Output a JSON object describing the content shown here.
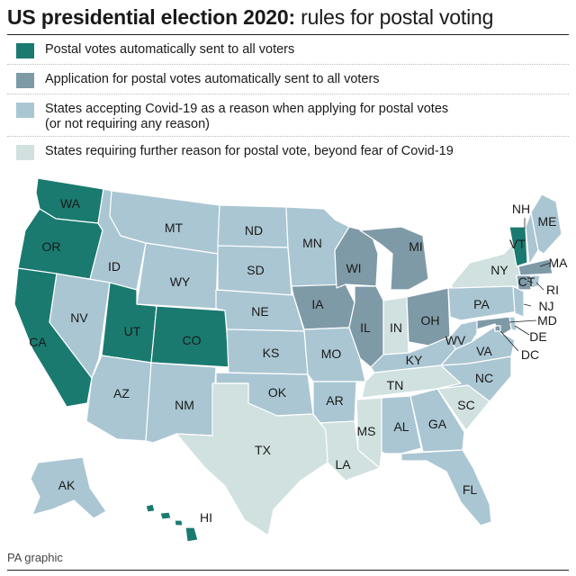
{
  "title": {
    "bold": "US presidential election 2020:",
    "rest": " rules for postal voting"
  },
  "colors": {
    "cat1": "#1a7a70",
    "cat2": "#7f9aa7",
    "cat3": "#aac6d3",
    "cat4": "#d0e1df",
    "border": "#ffffff"
  },
  "legend": [
    {
      "cat": "cat1",
      "lines": [
        "Postal votes automatically sent to all voters"
      ]
    },
    {
      "cat": "cat2",
      "lines": [
        "Application for postal votes automatically sent to all voters"
      ]
    },
    {
      "cat": "cat3",
      "lines": [
        "States accepting Covid-19 as a reason when applying for postal votes",
        "(or not requiring any reason)"
      ]
    },
    {
      "cat": "cat4",
      "lines": [
        "States requiring further reason for postal vote, beyond fear of Covid-19"
      ]
    }
  ],
  "states": [
    {
      "abbr": "WA",
      "cat": "cat1"
    },
    {
      "abbr": "OR",
      "cat": "cat1"
    },
    {
      "abbr": "CA",
      "cat": "cat1"
    },
    {
      "abbr": "ID",
      "cat": "cat3"
    },
    {
      "abbr": "NV",
      "cat": "cat3"
    },
    {
      "abbr": "UT",
      "cat": "cat1"
    },
    {
      "abbr": "AZ",
      "cat": "cat3"
    },
    {
      "abbr": "MT",
      "cat": "cat3"
    },
    {
      "abbr": "WY",
      "cat": "cat3"
    },
    {
      "abbr": "CO",
      "cat": "cat1"
    },
    {
      "abbr": "NM",
      "cat": "cat3"
    },
    {
      "abbr": "ND",
      "cat": "cat3"
    },
    {
      "abbr": "SD",
      "cat": "cat3"
    },
    {
      "abbr": "NE",
      "cat": "cat3"
    },
    {
      "abbr": "KS",
      "cat": "cat3"
    },
    {
      "abbr": "OK",
      "cat": "cat3"
    },
    {
      "abbr": "TX",
      "cat": "cat4"
    },
    {
      "abbr": "MN",
      "cat": "cat3"
    },
    {
      "abbr": "IA",
      "cat": "cat2"
    },
    {
      "abbr": "MO",
      "cat": "cat3"
    },
    {
      "abbr": "AR",
      "cat": "cat3"
    },
    {
      "abbr": "LA",
      "cat": "cat4"
    },
    {
      "abbr": "WI",
      "cat": "cat2"
    },
    {
      "abbr": "IL",
      "cat": "cat2"
    },
    {
      "abbr": "MI",
      "cat": "cat2"
    },
    {
      "abbr": "IN",
      "cat": "cat4"
    },
    {
      "abbr": "OH",
      "cat": "cat2"
    },
    {
      "abbr": "KY",
      "cat": "cat3"
    },
    {
      "abbr": "TN",
      "cat": "cat4"
    },
    {
      "abbr": "MS",
      "cat": "cat4"
    },
    {
      "abbr": "AL",
      "cat": "cat3"
    },
    {
      "abbr": "GA",
      "cat": "cat3"
    },
    {
      "abbr": "FL",
      "cat": "cat3"
    },
    {
      "abbr": "SC",
      "cat": "cat4"
    },
    {
      "abbr": "NC",
      "cat": "cat3"
    },
    {
      "abbr": "VA",
      "cat": "cat3"
    },
    {
      "abbr": "WV",
      "cat": "cat3"
    },
    {
      "abbr": "PA",
      "cat": "cat3"
    },
    {
      "abbr": "NY",
      "cat": "cat4"
    },
    {
      "abbr": "VT",
      "cat": "cat1"
    },
    {
      "abbr": "NH",
      "cat": "cat3"
    },
    {
      "abbr": "ME",
      "cat": "cat3"
    },
    {
      "abbr": "MA",
      "cat": "cat2"
    },
    {
      "abbr": "CT",
      "cat": "cat2"
    },
    {
      "abbr": "RI",
      "cat": "cat3"
    },
    {
      "abbr": "NJ",
      "cat": "cat3"
    },
    {
      "abbr": "DE",
      "cat": "cat3"
    },
    {
      "abbr": "MD",
      "cat": "cat2"
    },
    {
      "abbr": "DC",
      "cat": "cat2"
    },
    {
      "abbr": "AK",
      "cat": "cat3"
    },
    {
      "abbr": "HI",
      "cat": "cat1"
    }
  ],
  "footer": "PA graphic"
}
